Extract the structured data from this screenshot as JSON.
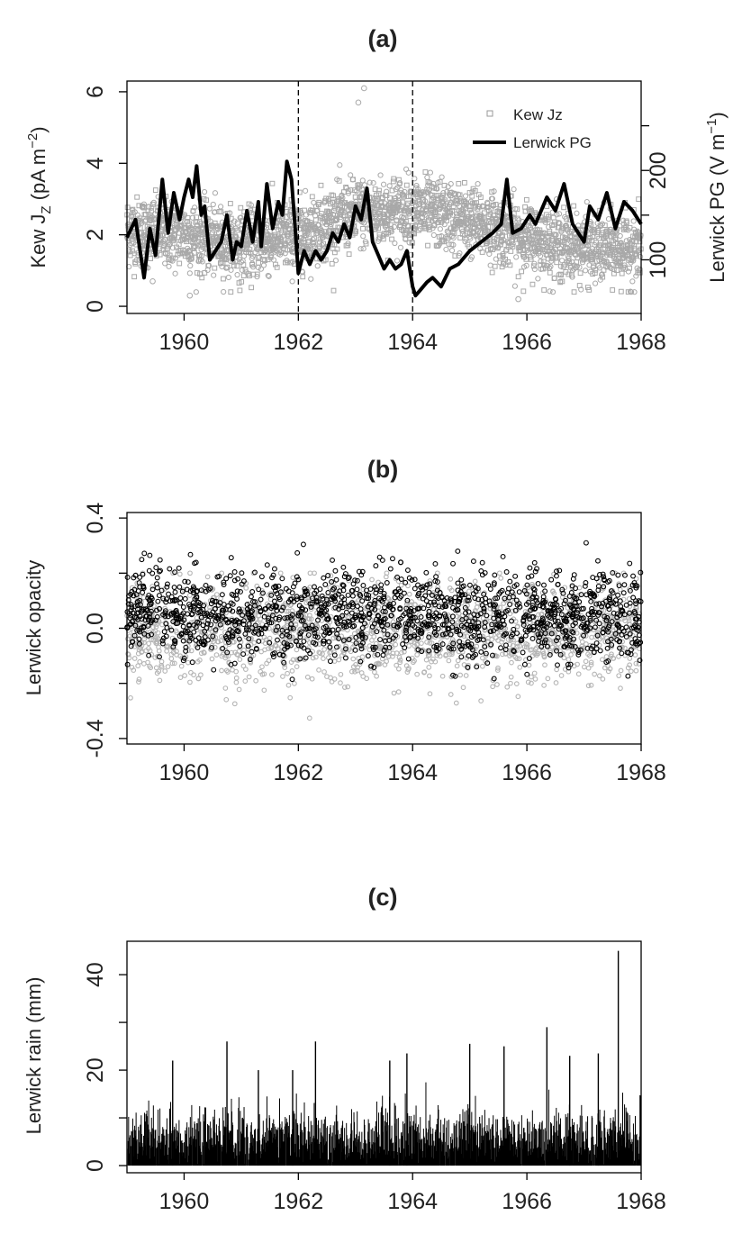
{
  "chart_data": [
    {
      "panel": "(a)",
      "type": "scatter+line",
      "title": "(a)",
      "xlim": [
        1959.0,
        1968.0
      ],
      "xticks": [
        "1960",
        "1962",
        "1964",
        "1966",
        "1968"
      ],
      "ylabel": "Kew J",
      "ylabel_sub": "Z",
      "ylabel_unit": " (pA m",
      "ylabel_sup": "−2",
      "ylabel_close": ")",
      "ylim": [
        -0.2,
        6.3
      ],
      "yticks": [
        "0",
        "2",
        "4",
        "6"
      ],
      "y2label": "Lerwick PG (V m",
      "y2label_sup": "−1",
      "y2label_close": ")",
      "y2lim": [
        40,
        300
      ],
      "y2ticks": [
        "100",
        "200"
      ],
      "vlines": [
        1962.0,
        1964.0
      ],
      "legend": {
        "position": "top-right",
        "items": [
          "Kew Jz",
          "Lerwick PG"
        ]
      },
      "series": [
        {
          "name": "Kew Jz",
          "style": "scatter",
          "color": "#a8a8a8",
          "note": "daily values, approx. 2600 points, typical spread",
          "center_by_year": [
            [
              1959.0,
              2.1
            ],
            [
              1960.0,
              2.0
            ],
            [
              1961.0,
              1.7
            ],
            [
              1962.0,
              2.0
            ],
            [
              1963.0,
              2.6
            ],
            [
              1964.0,
              2.7
            ],
            [
              1965.0,
              2.4
            ],
            [
              1966.0,
              1.9
            ],
            [
              1967.0,
              1.6
            ],
            [
              1968.0,
              1.6
            ]
          ],
          "outliers": [
            [
              1963.05,
              5.7
            ],
            [
              1963.15,
              6.1
            ],
            [
              1960.1,
              0.3
            ],
            [
              1965.85,
              0.2
            ],
            [
              1959.45,
              0.7
            ]
          ]
        },
        {
          "name": "Lerwick PG",
          "style": "line",
          "color": "#000000",
          "x": [
            1959.0,
            1959.15,
            1959.3,
            1959.4,
            1959.5,
            1959.62,
            1959.72,
            1959.82,
            1959.92,
            1960.0,
            1960.08,
            1960.15,
            1960.22,
            1960.3,
            1960.36,
            1960.45,
            1960.55,
            1960.65,
            1960.75,
            1960.85,
            1960.92,
            1961.0,
            1961.1,
            1961.2,
            1961.3,
            1961.35,
            1961.45,
            1961.55,
            1961.65,
            1961.72,
            1961.8,
            1961.88,
            1961.95,
            1962.0,
            1962.1,
            1962.2,
            1962.3,
            1962.4,
            1962.5,
            1962.6,
            1962.7,
            1962.8,
            1962.9,
            1963.0,
            1963.1,
            1963.2,
            1963.3,
            1963.4,
            1963.5,
            1963.6,
            1963.7,
            1963.8,
            1963.9,
            1964.0,
            1964.05,
            1964.12,
            1964.25,
            1964.35,
            1964.5,
            1964.65,
            1964.8,
            1965.0,
            1965.2,
            1965.4,
            1965.55,
            1965.65,
            1965.75,
            1965.9,
            1966.05,
            1966.15,
            1966.35,
            1966.5,
            1966.65,
            1966.8,
            1967.0,
            1967.1,
            1967.25,
            1967.4,
            1967.55,
            1967.7,
            1967.85,
            1968.0
          ],
          "values": [
            125,
            145,
            80,
            135,
            105,
            190,
            130,
            175,
            145,
            170,
            190,
            170,
            205,
            150,
            160,
            100,
            110,
            120,
            150,
            100,
            120,
            115,
            155,
            120,
            165,
            115,
            185,
            135,
            165,
            150,
            210,
            190,
            130,
            85,
            110,
            95,
            110,
            100,
            110,
            130,
            120,
            140,
            125,
            160,
            145,
            180,
            120,
            105,
            90,
            100,
            90,
            95,
            110,
            70,
            60,
            65,
            75,
            80,
            70,
            90,
            95,
            110,
            120,
            130,
            140,
            190,
            130,
            135,
            150,
            140,
            170,
            155,
            185,
            140,
            120,
            160,
            145,
            175,
            135,
            165,
            155,
            140
          ]
        }
      ]
    },
    {
      "panel": "(b)",
      "type": "scatter",
      "title": "(b)",
      "xlim": [
        1959.0,
        1968.0
      ],
      "xticks": [
        "1960",
        "1962",
        "1964",
        "1966",
        "1968"
      ],
      "ylabel": "Lerwick opacity",
      "ylim": [
        -0.42,
        0.42
      ],
      "yticks": [
        "-0.4",
        "0.0",
        "0.4"
      ],
      "series": [
        {
          "style": "scatter",
          "color": "#b4b4b4",
          "center": -0.02,
          "spread": 0.09,
          "min": -0.36,
          "max": 0.2
        },
        {
          "style": "scatter",
          "color": "#000000",
          "center": 0.05,
          "spread": 0.08,
          "min": -0.22,
          "max": 0.31
        }
      ]
    },
    {
      "panel": "(c)",
      "type": "bar",
      "title": "(c)",
      "xlim": [
        1959.0,
        1968.0
      ],
      "xticks": [
        "1960",
        "1962",
        "1964",
        "1966",
        "1968"
      ],
      "ylabel": "Lerwick rain (mm)",
      "ylim": [
        -1.5,
        47
      ],
      "yticks": [
        "0",
        "20",
        "40"
      ],
      "peaks": [
        [
          1959.8,
          22
        ],
        [
          1960.75,
          26
        ],
        [
          1961.3,
          20
        ],
        [
          1961.9,
          20
        ],
        [
          1962.3,
          26
        ],
        [
          1963.6,
          22
        ],
        [
          1963.9,
          23.5
        ],
        [
          1965.0,
          25.5
        ],
        [
          1965.6,
          25
        ],
        [
          1966.35,
          29
        ],
        [
          1966.75,
          23
        ],
        [
          1967.25,
          23.5
        ],
        [
          1967.6,
          45
        ]
      ]
    }
  ]
}
